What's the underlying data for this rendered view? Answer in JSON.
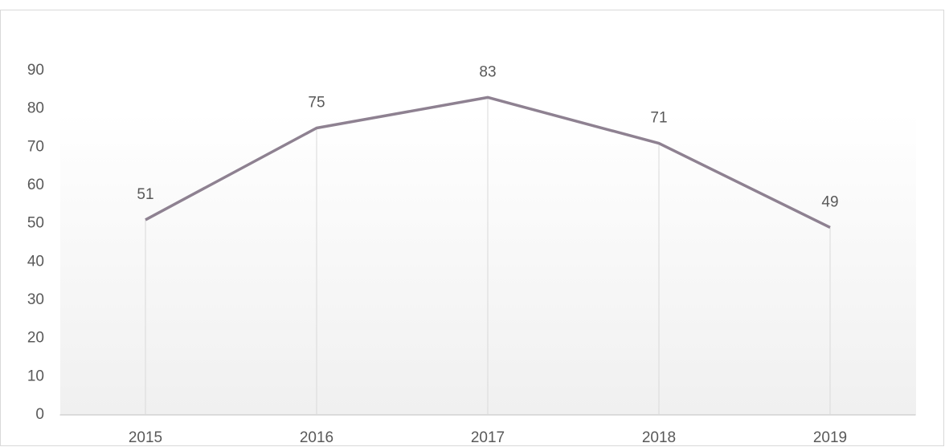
{
  "chart_data": {
    "type": "line",
    "categories": [
      "2015",
      "2016",
      "2017",
      "2018",
      "2019"
    ],
    "values": [
      51,
      75,
      83,
      71,
      49
    ],
    "color": "#8e8191",
    "ylim": [
      0,
      90
    ],
    "yticks": [
      0,
      10,
      20,
      30,
      40,
      50,
      60,
      70,
      80,
      90
    ],
    "drop_lines": true,
    "data_labels": true
  }
}
